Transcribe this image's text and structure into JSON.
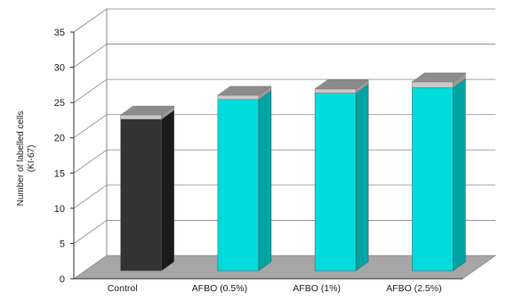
{
  "chart_data": {
    "type": "bar",
    "style": "3d",
    "categories": [
      "Control",
      "AFBO (0.5%)",
      "AFBO (1%)",
      "AFBO (2.5%)"
    ],
    "series": [
      {
        "values": [
          21.5,
          24.3,
          25.2,
          26.0
        ]
      },
      {
        "values": [
          0.6,
          0.6,
          0.6,
          0.8
        ]
      }
    ],
    "ylabel": [
      "Number of labelled cells",
      "(KI-67)"
    ],
    "yticks": [
      0,
      5,
      10,
      15,
      20,
      25,
      30,
      35
    ],
    "ylim": [
      0,
      35
    ],
    "grid": true,
    "legend": "none",
    "colors": {
      "control_front": "#333333",
      "control_side": "#1a1a1a",
      "bar_front": "#00dcdc",
      "bar_side": "#00a3a3",
      "cap_front": "#c8c8c8",
      "cap_side": "#9a9a9a",
      "cap_top": "#8c8c8c",
      "floor": "#a6a6a6",
      "grid": "#888888"
    }
  }
}
